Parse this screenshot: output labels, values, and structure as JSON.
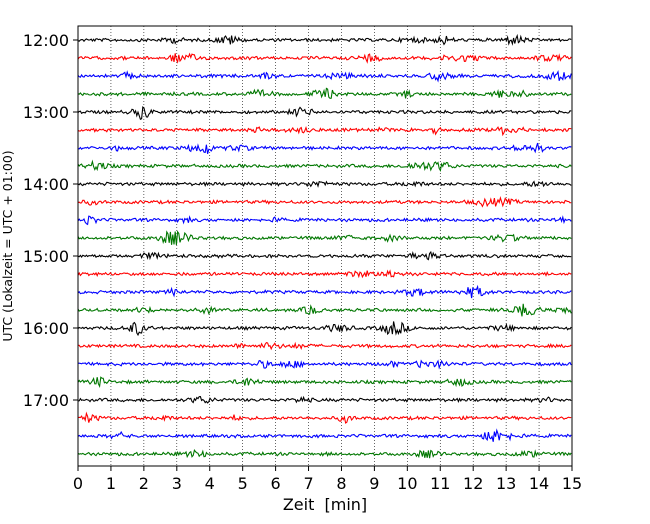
{
  "chart_data": {
    "type": "line",
    "title": "",
    "xlabel": "Zeit  [min]",
    "ylabel": "UTC (Lokalzeit = UTC + 01:00)",
    "xlim": [
      0,
      15
    ],
    "x_ticks": [
      "0",
      "1",
      "2",
      "3",
      "4",
      "5",
      "6",
      "7",
      "8",
      "9",
      "10",
      "11",
      "12",
      "13",
      "14",
      "15"
    ],
    "y_tick_labels": [
      "12:00",
      "13:00",
      "14:00",
      "15:00",
      "16:00",
      "17:00"
    ],
    "grid": "vertical dotted",
    "traces_per_hour": 4,
    "minutes_per_trace": 15,
    "trace_start_times": [
      "12:00",
      "12:15",
      "12:30",
      "12:45",
      "13:00",
      "13:15",
      "13:30",
      "13:45",
      "14:00",
      "14:15",
      "14:30",
      "14:45",
      "15:00",
      "15:15",
      "15:30",
      "15:45",
      "16:00",
      "16:15",
      "16:30",
      "16:45",
      "17:00",
      "17:15",
      "17:30",
      "17:45"
    ],
    "trace_colors": [
      "#000000",
      "#ff0000",
      "#0000ff",
      "#007700"
    ],
    "series_description": "24 seismogram traces, 15 minutes each, low-amplitude noise with occasional small bursts"
  }
}
